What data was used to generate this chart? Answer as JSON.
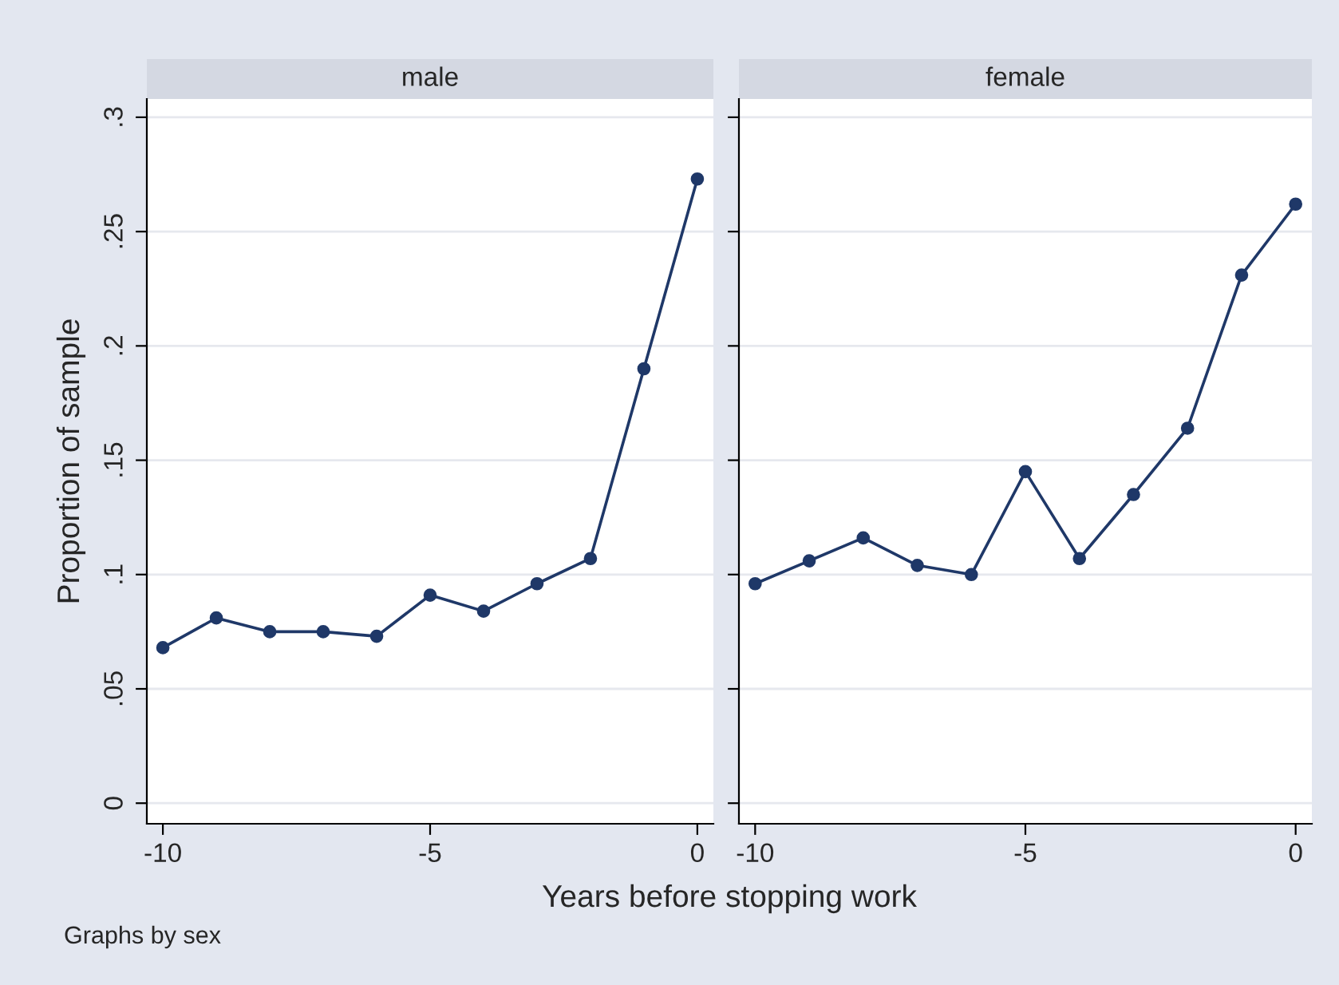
{
  "chart_data": [
    {
      "type": "line",
      "title": "male",
      "ylabel": "Proportion of sample",
      "xlabel": "Years before stopping work",
      "annotations": [
        "Graphs by sex"
      ],
      "x": [
        -10,
        -9,
        -8,
        -7,
        -6,
        -5,
        -4,
        -3,
        -2,
        -1,
        0
      ],
      "series": [
        {
          "color": "#1f3868",
          "values": [
            0.068,
            0.081,
            0.075,
            0.075,
            0.073,
            0.091,
            0.084,
            0.096,
            0.107,
            0.19,
            0.273
          ]
        }
      ],
      "marker": "circle",
      "grid": "y",
      "xlim": [
        -10.3,
        0.3
      ],
      "xticks": [
        -10,
        -5,
        0
      ],
      "ylim": [
        -0.009,
        0.308
      ],
      "yticks": [
        0,
        {
          "value": 0.05,
          "label": ".05"
        },
        {
          "value": 0.1,
          "label": ".1"
        },
        {
          "value": 0.15,
          "label": ".15"
        },
        {
          "value": 0.2,
          "label": ".2"
        },
        {
          "value": 0.25,
          "label": ".25"
        },
        {
          "value": 0.3,
          "label": ".3"
        }
      ]
    },
    {
      "type": "line",
      "title": "female",
      "x": [
        -10,
        -9,
        -8,
        -7,
        -6,
        -5,
        -4,
        -3,
        -2,
        -1,
        0
      ],
      "series": [
        {
          "color": "#1f3868",
          "values": [
            0.096,
            0.106,
            0.116,
            0.104,
            0.1,
            0.145,
            0.107,
            0.135,
            0.164,
            0.231,
            0.262
          ]
        }
      ],
      "marker": "circle",
      "grid": "y",
      "tick_labels": "x",
      "xlim": [
        -10.3,
        0.3
      ],
      "xticks": [
        -10,
        -5,
        0
      ],
      "ylim": [
        -0.009,
        0.308
      ],
      "yticks": [
        0,
        0.05,
        0.1,
        0.15,
        0.2,
        0.25,
        0.3
      ]
    }
  ]
}
